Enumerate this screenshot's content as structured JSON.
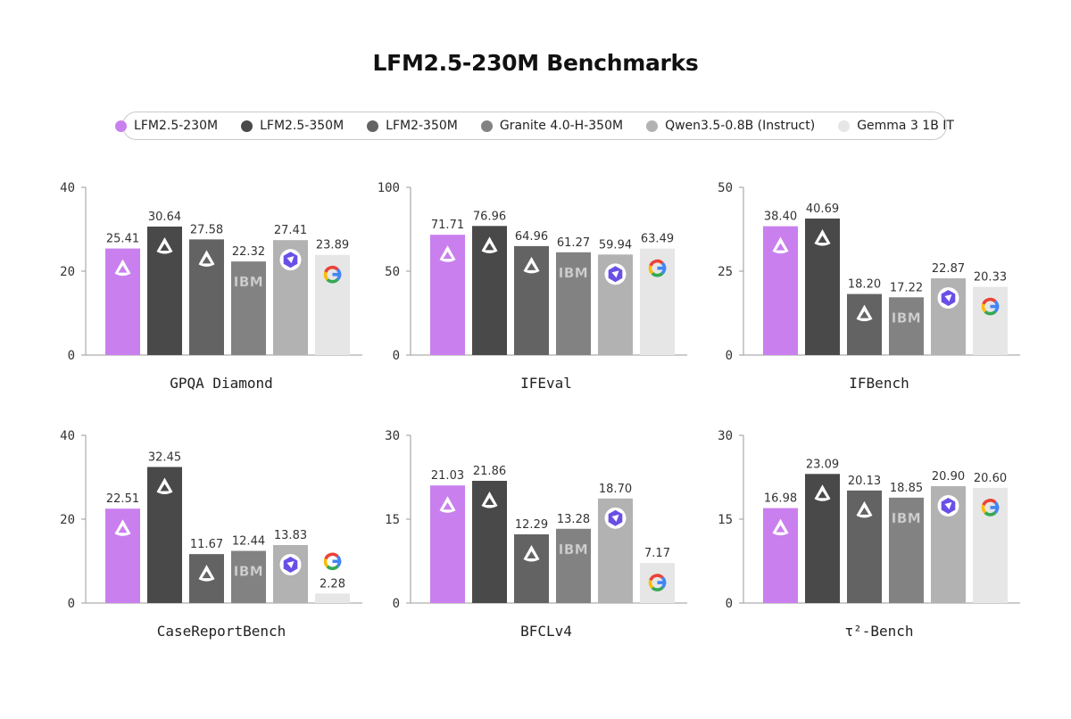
{
  "title": "LFM2.5-230M Benchmarks",
  "legend": [
    {
      "name": "LFM2.5-230M",
      "color": "#c97fee",
      "icon": "liquid-logo-icon"
    },
    {
      "name": "LFM2.5-350M",
      "color": "#494949",
      "icon": "liquid-logo-icon"
    },
    {
      "name": "LFM2-350M",
      "color": "#636363",
      "icon": "liquid-logo-icon"
    },
    {
      "name": "Granite 4.0-H-350M",
      "color": "#828282",
      "icon": "ibm-logo-icon"
    },
    {
      "name": "Qwen3.5-0.8B (Instruct)",
      "color": "#b2b2b2",
      "icon": "qwen-logo-icon"
    },
    {
      "name": "Gemma 3 1B IT",
      "color": "#e6e6e6",
      "icon": "google-logo-icon"
    }
  ],
  "chart_data": [
    {
      "type": "bar",
      "title": "GPQA Diamond",
      "ylim": [
        0,
        40
      ],
      "yticks": [
        "0",
        "20",
        "40"
      ],
      "categories": [
        "LFM2.5-230M",
        "LFM2.5-350M",
        "LFM2-350M",
        "Granite 4.0-H-350M",
        "Qwen3.5-0.8B (Instruct)",
        "Gemma 3 1B IT"
      ],
      "values": [
        25.41,
        30.64,
        27.58,
        22.32,
        27.41,
        23.89
      ],
      "labels": [
        "25.41",
        "30.64",
        "27.58",
        "22.32",
        "27.41",
        "23.89"
      ]
    },
    {
      "type": "bar",
      "title": "IFEval",
      "ylim": [
        0,
        100
      ],
      "yticks": [
        "0",
        "50",
        "100"
      ],
      "categories": [
        "LFM2.5-230M",
        "LFM2.5-350M",
        "LFM2-350M",
        "Granite 4.0-H-350M",
        "Qwen3.5-0.8B (Instruct)",
        "Gemma 3 1B IT"
      ],
      "values": [
        71.71,
        76.96,
        64.96,
        61.27,
        59.94,
        63.49
      ],
      "labels": [
        "71.71",
        "76.96",
        "64.96",
        "61.27",
        "59.94",
        "63.49"
      ]
    },
    {
      "type": "bar",
      "title": "IFBench",
      "ylim": [
        0,
        50
      ],
      "yticks": [
        "0",
        "25",
        "50"
      ],
      "categories": [
        "LFM2.5-230M",
        "LFM2.5-350M",
        "LFM2-350M",
        "Granite 4.0-H-350M",
        "Qwen3.5-0.8B (Instruct)",
        "Gemma 3 1B IT"
      ],
      "values": [
        38.4,
        40.69,
        18.2,
        17.22,
        22.87,
        20.33
      ],
      "labels": [
        "38.40",
        "40.69",
        "18.20",
        "17.22",
        "22.87",
        "20.33"
      ]
    },
    {
      "type": "bar",
      "title": "CaseReportBench",
      "ylim": [
        0,
        40
      ],
      "yticks": [
        "0",
        "20",
        "40"
      ],
      "categories": [
        "LFM2.5-230M",
        "LFM2.5-350M",
        "LFM2-350M",
        "Granite 4.0-H-350M",
        "Qwen3.5-0.8B (Instruct)",
        "Gemma 3 1B IT"
      ],
      "values": [
        22.51,
        32.45,
        11.67,
        12.44,
        13.83,
        2.28
      ],
      "labels": [
        "22.51",
        "32.45",
        "11.67",
        "12.44",
        "13.83",
        "2.28"
      ]
    },
    {
      "type": "bar",
      "title": "BFCLv4",
      "ylim": [
        0,
        30
      ],
      "yticks": [
        "0",
        "15",
        "30"
      ],
      "categories": [
        "LFM2.5-230M",
        "LFM2.5-350M",
        "LFM2-350M",
        "Granite 4.0-H-350M",
        "Qwen3.5-0.8B (Instruct)",
        "Gemma 3 1B IT"
      ],
      "values": [
        21.03,
        21.86,
        12.29,
        13.28,
        18.7,
        7.17
      ],
      "labels": [
        "21.03",
        "21.86",
        "12.29",
        "13.28",
        "18.70",
        "7.17"
      ]
    },
    {
      "type": "bar",
      "title": "τ²-Bench",
      "ylim": [
        0,
        30
      ],
      "yticks": [
        "0",
        "15",
        "30"
      ],
      "categories": [
        "LFM2.5-230M",
        "LFM2.5-350M",
        "LFM2-350M",
        "Granite 4.0-H-350M",
        "Qwen3.5-0.8B (Instruct)",
        "Gemma 3 1B IT"
      ],
      "values": [
        16.98,
        23.09,
        20.13,
        18.85,
        20.9,
        20.6
      ],
      "labels": [
        "16.98",
        "23.09",
        "20.13",
        "18.85",
        "20.90",
        "20.60"
      ]
    }
  ]
}
